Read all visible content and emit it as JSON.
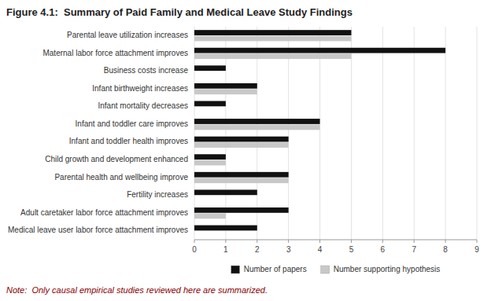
{
  "chart_data": {
    "type": "bar",
    "orientation": "horizontal",
    "title": "Figure 4.1:  Summary of Paid Family and Medical Leave Study Findings",
    "categories": [
      "Parental leave utilization increases",
      "Maternal labor force attachment improves",
      "Business costs increase",
      "Infant birthweight increases",
      "Infant mortality decreases",
      "Infant and toddler care improves",
      "Infant and toddler health improves",
      "Child growth and development enhanced",
      "Parental health and wellbeing improve",
      "Fertility increases",
      "Adult caretaker labor force attachment improves",
      "Medical leave user labor force attachment improves"
    ],
    "series": [
      {
        "name": "Number of papers",
        "color": "#111111",
        "values": [
          5,
          8,
          1,
          2,
          1,
          4,
          3,
          1,
          3,
          2,
          3,
          2
        ]
      },
      {
        "name": "Number supporting hypothesis",
        "color": "#c8c8c8",
        "values": [
          5,
          5,
          0,
          2,
          0,
          4,
          3,
          1,
          3,
          0,
          1,
          0
        ]
      }
    ],
    "xlim": [
      0,
      9
    ],
    "xticks": [
      0,
      1,
      2,
      3,
      4,
      5,
      6,
      7,
      8,
      9
    ],
    "grid": true,
    "legend": "bottom",
    "annotations": [
      {
        "text": "Note:  Only causal empirical studies reviewed here are summarized.",
        "color": "#8b0000"
      }
    ]
  }
}
